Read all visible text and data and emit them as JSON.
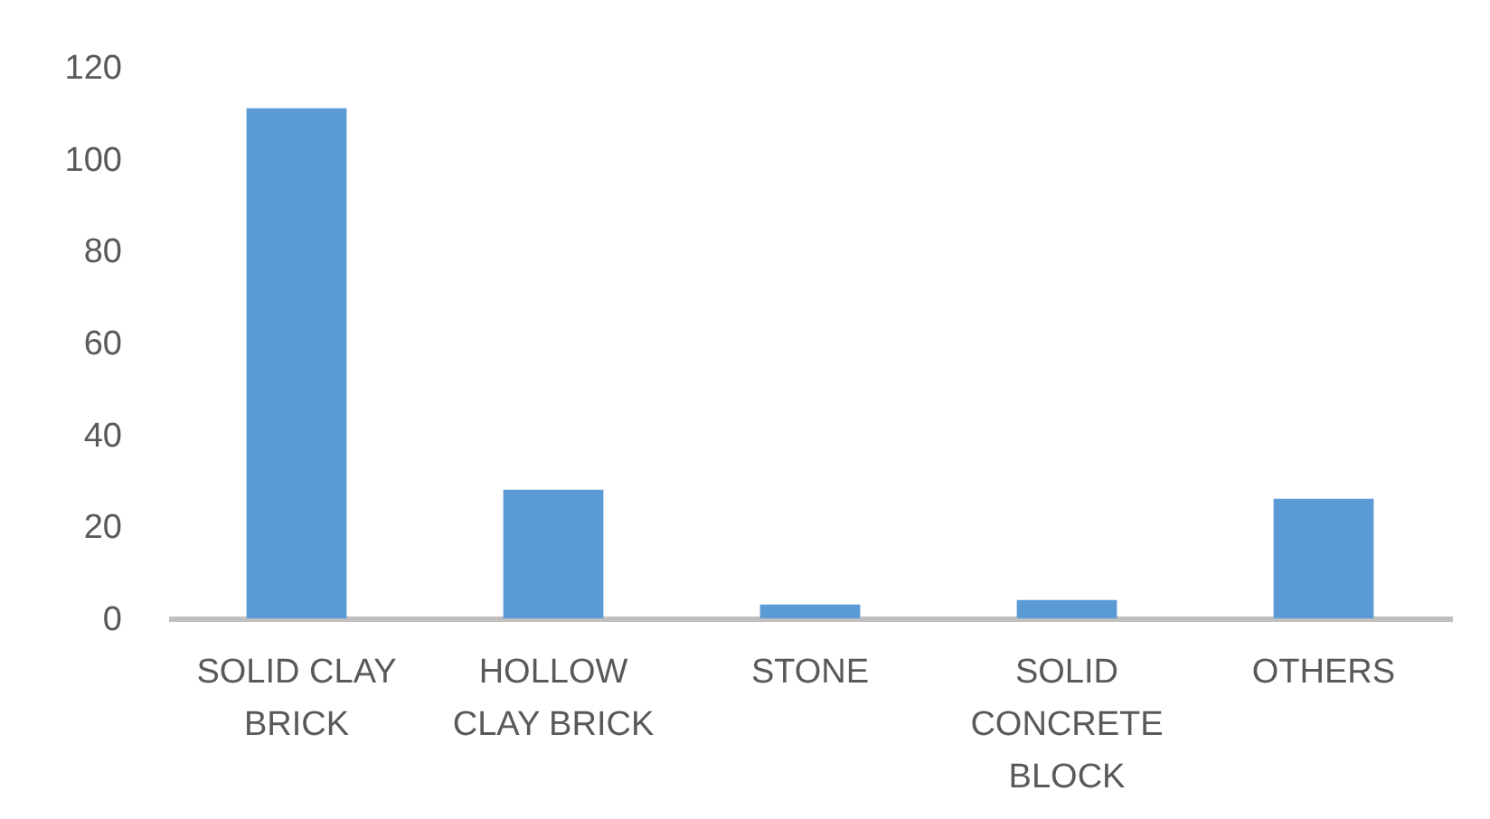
{
  "chart_data": {
    "type": "bar",
    "categories": [
      "SOLID CLAY BRICK",
      "HOLLOW CLAY BRICK",
      "STONE",
      "SOLID CONCRETE BLOCK",
      "OTHERS"
    ],
    "values": [
      111,
      28,
      3,
      4,
      26
    ],
    "color": "#5b9bd5",
    "ylim": [
      0,
      120
    ],
    "yticks": [
      0,
      20,
      40,
      60,
      80,
      100,
      120
    ]
  }
}
